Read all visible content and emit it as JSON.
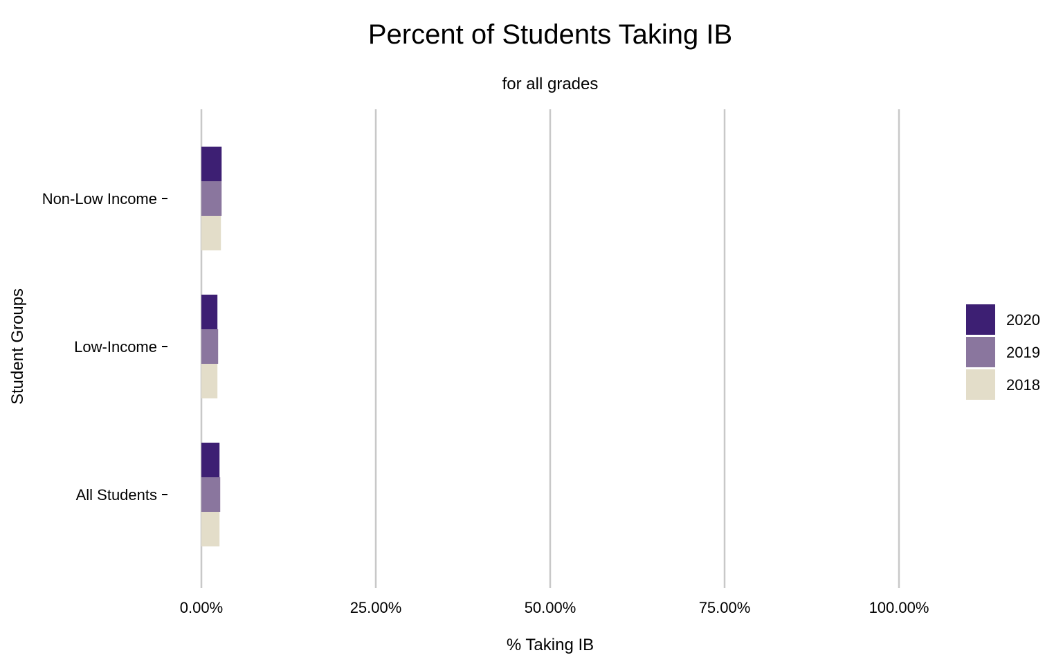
{
  "chart_data": {
    "type": "bar",
    "orientation": "horizontal",
    "title": "Percent of Students Taking IB",
    "subtitle": "for all grades",
    "xlabel": "% Taking IB",
    "ylabel": "Student Groups",
    "xlim": [
      0,
      1
    ],
    "x_ticks": [
      "0.00%",
      "25.00%",
      "50.00%",
      "75.00%",
      "100.00%"
    ],
    "categories": [
      "Non-Low Income",
      "Low-Income",
      "All Students"
    ],
    "series": [
      {
        "name": "2020",
        "color": "#3d1f73",
        "values": [
          0.029,
          0.023,
          0.026
        ]
      },
      {
        "name": "2019",
        "color": "#8a769e",
        "values": [
          0.029,
          0.024,
          0.027
        ]
      },
      {
        "name": "2018",
        "color": "#e3ddc9",
        "values": [
          0.028,
          0.023,
          0.026
        ]
      }
    ],
    "legend": {
      "position": "right",
      "items": [
        "2020",
        "2019",
        "2018"
      ]
    },
    "grid": {
      "vertical": true,
      "horizontal": false
    }
  }
}
